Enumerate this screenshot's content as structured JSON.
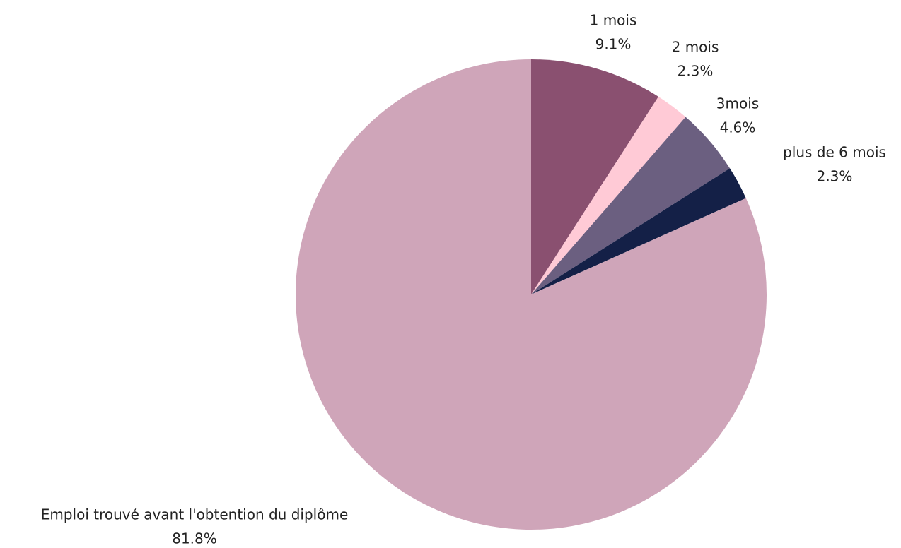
{
  "chart_data": {
    "type": "pie",
    "categories": [
      "1 mois",
      "2 mois",
      "3mois",
      "plus de 6 mois",
      "Emploi trouvé avant l'obtention du diplôme"
    ],
    "values": [
      9.1,
      2.3,
      4.6,
      2.3,
      81.8
    ],
    "value_labels": [
      "9.1%",
      "2.3%",
      "4.6%",
      "2.3%",
      "81.8%"
    ],
    "colors": [
      "#8a5070",
      "#ffcad6",
      "#6b5f80",
      "#142047",
      "#cfa5b9"
    ]
  }
}
